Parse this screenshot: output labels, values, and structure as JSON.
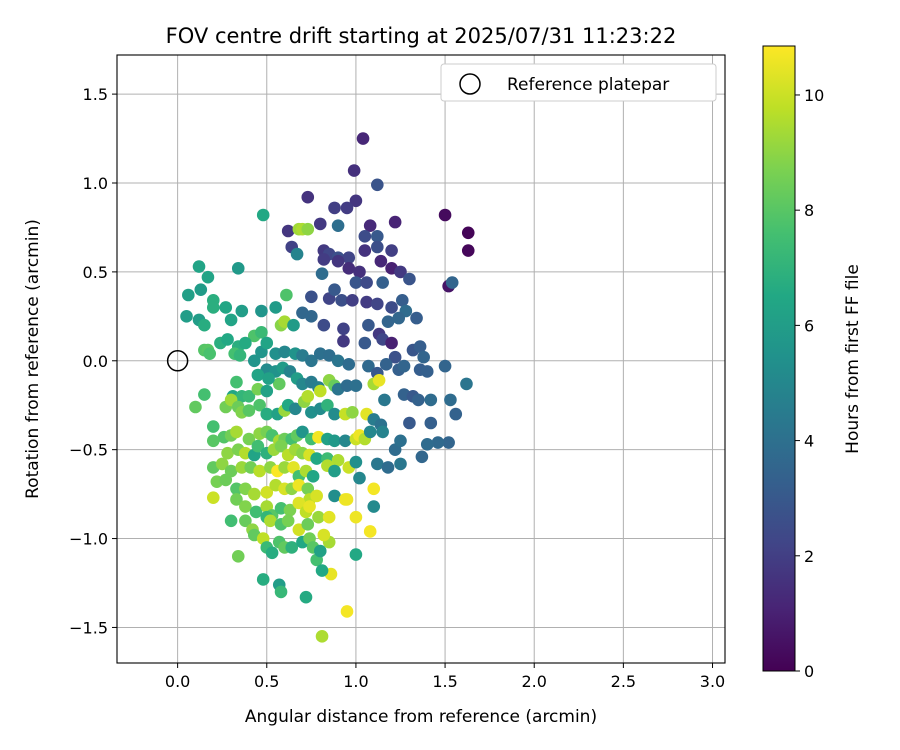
{
  "chart_data": {
    "type": "scatter",
    "title": "FOV centre drift starting at 2025/07/31 11:23:22",
    "xlabel": "Angular distance from reference (arcmin)",
    "ylabel": "Rotation from reference (arcmin)",
    "xlim": [
      -0.34,
      3.07
    ],
    "ylim": [
      -1.7,
      1.72
    ],
    "xticks": [
      0.0,
      0.5,
      1.0,
      1.5,
      2.0,
      2.5,
      3.0
    ],
    "xtick_labels": [
      "0.0",
      "0.5",
      "1.0",
      "1.5",
      "2.0",
      "2.5",
      "3.0"
    ],
    "yticks": [
      -1.5,
      -1.0,
      -0.5,
      0.0,
      0.5,
      1.0,
      1.5
    ],
    "ytick_labels": [
      "−1.5",
      "−1.0",
      "−0.5",
      "0.0",
      "0.5",
      "1.0",
      "1.5"
    ],
    "grid": true,
    "legend": {
      "placement": "top-right",
      "entries": [
        "Reference platepar"
      ]
    },
    "reference_point": {
      "x": 0.0,
      "y": 0.0
    },
    "colorbar": {
      "label": "Hours from first FF file",
      "range": [
        0,
        10.85
      ],
      "ticks": [
        0,
        2,
        4,
        6,
        8,
        10
      ],
      "tick_labels": [
        "0",
        "2",
        "4",
        "6",
        "8",
        "10"
      ],
      "colormap": "viridis"
    },
    "points": [
      [
        1.04,
        1.25,
        1.2
      ],
      [
        0.99,
        1.07,
        1.5
      ],
      [
        1.5,
        0.82,
        0.3
      ],
      [
        1.63,
        0.72,
        0.1
      ],
      [
        1.63,
        0.62,
        0.2
      ],
      [
        1.52,
        0.42,
        0.6
      ],
      [
        1.54,
        0.44,
        3.5
      ],
      [
        1.12,
        0.99,
        2.8
      ],
      [
        1.0,
        0.9,
        1.7
      ],
      [
        0.95,
        0.86,
        1.9
      ],
      [
        0.88,
        0.86,
        2.0
      ],
      [
        0.73,
        0.92,
        1.6
      ],
      [
        1.22,
        0.78,
        1.1
      ],
      [
        0.8,
        0.77,
        1.8
      ],
      [
        0.62,
        0.73,
        1.7
      ],
      [
        0.68,
        0.74,
        9.3
      ],
      [
        0.7,
        0.74,
        9.5
      ],
      [
        0.73,
        0.74,
        9.0
      ],
      [
        0.9,
        0.76,
        3.9
      ],
      [
        1.08,
        0.76,
        1.3
      ],
      [
        1.05,
        0.7,
        2.5
      ],
      [
        1.12,
        0.7,
        3.0
      ],
      [
        0.48,
        0.82,
        6.5
      ],
      [
        0.64,
        0.64,
        2.1
      ],
      [
        0.67,
        0.6,
        4.8
      ],
      [
        0.82,
        0.62,
        1.8
      ],
      [
        0.85,
        0.6,
        2.3
      ],
      [
        0.9,
        0.58,
        2.7
      ],
      [
        0.96,
        0.58,
        2.2
      ],
      [
        1.05,
        0.62,
        1.6
      ],
      [
        1.12,
        0.64,
        2.6
      ],
      [
        1.2,
        0.62,
        2.0
      ],
      [
        0.82,
        0.57,
        1.9
      ],
      [
        0.9,
        0.56,
        1.7
      ],
      [
        0.96,
        0.52,
        1.4
      ],
      [
        1.02,
        0.5,
        1.5
      ],
      [
        1.14,
        0.56,
        1.2
      ],
      [
        1.2,
        0.52,
        1.0
      ],
      [
        1.25,
        0.5,
        1.8
      ],
      [
        0.81,
        0.49,
        3.8
      ],
      [
        1.0,
        0.44,
        2.9
      ],
      [
        1.06,
        0.44,
        2.4
      ],
      [
        1.15,
        0.44,
        3.3
      ],
      [
        1.3,
        0.46,
        2.8
      ],
      [
        0.34,
        0.52,
        5.8
      ],
      [
        0.12,
        0.53,
        6.3
      ],
      [
        0.75,
        0.36,
        2.7
      ],
      [
        0.85,
        0.35,
        2.2
      ],
      [
        0.92,
        0.34,
        2.6
      ],
      [
        0.98,
        0.34,
        2.0
      ],
      [
        1.06,
        0.33,
        1.9
      ],
      [
        1.12,
        0.32,
        2.2
      ],
      [
        1.2,
        0.3,
        2.5
      ],
      [
        1.26,
        0.34,
        3.2
      ],
      [
        1.28,
        0.28,
        3.8
      ],
      [
        0.88,
        0.4,
        3.0
      ],
      [
        0.61,
        0.37,
        7.8
      ],
      [
        0.55,
        0.3,
        5.9
      ],
      [
        0.47,
        0.28,
        5.6
      ],
      [
        0.3,
        0.23,
        6.3
      ],
      [
        0.2,
        0.34,
        6.8
      ],
      [
        0.2,
        0.3,
        6.8
      ],
      [
        0.27,
        0.3,
        6.4
      ],
      [
        0.13,
        0.4,
        5.9
      ],
      [
        0.06,
        0.37,
        6.1
      ],
      [
        0.17,
        0.47,
        6.3
      ],
      [
        0.05,
        0.25,
        6.0
      ],
      [
        0.12,
        0.23,
        6.0
      ],
      [
        0.15,
        0.2,
        6.7
      ],
      [
        0.36,
        0.28,
        6.0
      ],
      [
        0.43,
        0.14,
        7.8
      ],
      [
        0.47,
        0.16,
        7.3
      ],
      [
        0.58,
        0.2,
        8.9
      ],
      [
        0.6,
        0.22,
        9.4
      ],
      [
        0.65,
        0.2,
        5.9
      ],
      [
        0.7,
        0.27,
        3.6
      ],
      [
        0.75,
        0.25,
        3.6
      ],
      [
        0.82,
        0.2,
        2.5
      ],
      [
        0.93,
        0.18,
        2.1
      ],
      [
        1.07,
        0.2,
        3.0
      ],
      [
        1.18,
        0.22,
        3.5
      ],
      [
        1.24,
        0.24,
        3.6
      ],
      [
        1.34,
        0.24,
        3.2
      ],
      [
        0.93,
        0.11,
        1.8
      ],
      [
        1.05,
        0.1,
        3.0
      ],
      [
        1.13,
        0.15,
        1.8
      ],
      [
        1.15,
        0.12,
        2.3
      ],
      [
        1.2,
        0.1,
        1.0
      ],
      [
        1.22,
        0.02,
        2.7
      ],
      [
        1.32,
        0.06,
        2.9
      ],
      [
        1.36,
        0.08,
        3.2
      ],
      [
        1.38,
        0.02,
        3.5
      ],
      [
        1.5,
        -0.03,
        3.5
      ],
      [
        1.62,
        -0.13,
        4.2
      ],
      [
        0.15,
        0.06,
        7.9
      ],
      [
        0.17,
        0.06,
        8.0
      ],
      [
        0.18,
        0.04,
        7.7
      ],
      [
        0.24,
        0.1,
        6.8
      ],
      [
        0.28,
        0.12,
        6.5
      ],
      [
        0.34,
        0.08,
        6.8
      ],
      [
        0.38,
        0.1,
        6.6
      ],
      [
        0.32,
        0.04,
        7.6
      ],
      [
        0.35,
        0.03,
        7.1
      ],
      [
        0.43,
        0.0,
        5.6
      ],
      [
        0.47,
        0.05,
        5.6
      ],
      [
        0.5,
        0.1,
        6.3
      ],
      [
        0.55,
        0.04,
        5.4
      ],
      [
        0.6,
        0.05,
        5.0
      ],
      [
        0.66,
        0.04,
        5.5
      ],
      [
        0.7,
        0.03,
        4.5
      ],
      [
        0.75,
        0.0,
        4.2
      ],
      [
        0.8,
        0.04,
        4.0
      ],
      [
        0.85,
        0.03,
        3.9
      ],
      [
        0.9,
        0.0,
        4.2
      ],
      [
        0.96,
        -0.02,
        3.8
      ],
      [
        1.07,
        -0.03,
        3.7
      ],
      [
        1.12,
        -0.07,
        3.0
      ],
      [
        1.17,
        -0.02,
        3.4
      ],
      [
        1.24,
        -0.05,
        3.3
      ],
      [
        1.27,
        -0.03,
        3.5
      ],
      [
        1.36,
        -0.05,
        3.2
      ],
      [
        1.4,
        -0.06,
        3.3
      ],
      [
        0.5,
        -0.05,
        5.1
      ],
      [
        0.55,
        -0.06,
        5.5
      ],
      [
        0.59,
        -0.04,
        5.9
      ],
      [
        0.63,
        -0.06,
        4.8
      ],
      [
        0.57,
        -0.13,
        8.2
      ],
      [
        0.45,
        -0.08,
        6.3
      ],
      [
        0.51,
        -0.1,
        6.2
      ],
      [
        0.33,
        -0.12,
        7.6
      ],
      [
        0.31,
        -0.2,
        6.4
      ],
      [
        0.36,
        -0.2,
        7.1
      ],
      [
        0.4,
        -0.2,
        7.3
      ],
      [
        0.45,
        -0.16,
        8.6
      ],
      [
        0.5,
        -0.17,
        6.2
      ],
      [
        0.67,
        -0.1,
        6.0
      ],
      [
        0.7,
        -0.13,
        5.0
      ],
      [
        0.75,
        -0.12,
        4.5
      ],
      [
        0.79,
        -0.15,
        4.6
      ],
      [
        0.8,
        -0.17,
        9.8
      ],
      [
        0.85,
        -0.11,
        9.0
      ],
      [
        0.88,
        -0.14,
        8.3
      ],
      [
        0.9,
        -0.16,
        4.2
      ],
      [
        0.95,
        -0.14,
        3.8
      ],
      [
        1.0,
        -0.14,
        4.0
      ],
      [
        1.1,
        -0.13,
        9.4
      ],
      [
        1.13,
        -0.11,
        10.5
      ],
      [
        1.16,
        -0.22,
        4.3
      ],
      [
        1.27,
        -0.19,
        3.4
      ],
      [
        1.32,
        -0.2,
        3.0
      ],
      [
        1.35,
        -0.22,
        3.4
      ],
      [
        1.42,
        -0.22,
        3.8
      ],
      [
        1.53,
        -0.22,
        3.8
      ],
      [
        1.56,
        -0.3,
        3.4
      ],
      [
        0.27,
        -0.26,
        8.5
      ],
      [
        0.3,
        -0.22,
        9.3
      ],
      [
        0.34,
        -0.26,
        8.4
      ],
      [
        0.36,
        -0.29,
        8.8
      ],
      [
        0.4,
        -0.28,
        8.0
      ],
      [
        0.46,
        -0.25,
        7.8
      ],
      [
        0.5,
        -0.3,
        6.7
      ],
      [
        0.56,
        -0.3,
        6.2
      ],
      [
        0.6,
        -0.28,
        9.2
      ],
      [
        0.62,
        -0.25,
        6.5
      ],
      [
        0.66,
        -0.27,
        5.0
      ],
      [
        0.71,
        -0.23,
        9.0
      ],
      [
        0.73,
        -0.2,
        9.6
      ],
      [
        0.75,
        -0.29,
        5.4
      ],
      [
        0.8,
        -0.27,
        5.2
      ],
      [
        0.84,
        -0.25,
        7.0
      ],
      [
        0.88,
        -0.3,
        5.2
      ],
      [
        0.94,
        -0.3,
        9.9
      ],
      [
        0.98,
        -0.29,
        9.0
      ],
      [
        1.06,
        -0.3,
        10.4
      ],
      [
        1.1,
        -0.33,
        4.5
      ],
      [
        1.14,
        -0.36,
        4.1
      ],
      [
        1.3,
        -0.35,
        3.0
      ],
      [
        1.42,
        -0.35,
        3.3
      ],
      [
        1.52,
        -0.46,
        3.5
      ],
      [
        1.46,
        -0.46,
        3.7
      ],
      [
        1.4,
        -0.47,
        3.8
      ],
      [
        1.37,
        -0.54,
        3.6
      ],
      [
        1.22,
        -0.5,
        3.8
      ],
      [
        0.2,
        -0.37,
        7.6
      ],
      [
        0.26,
        -0.43,
        7.9
      ],
      [
        0.3,
        -0.42,
        8.5
      ],
      [
        0.33,
        -0.4,
        9.4
      ],
      [
        0.4,
        -0.44,
        8.6
      ],
      [
        0.46,
        -0.41,
        9.0
      ],
      [
        0.5,
        -0.4,
        8.6
      ],
      [
        0.53,
        -0.42,
        7.7
      ],
      [
        0.57,
        -0.45,
        9.4
      ],
      [
        0.6,
        -0.44,
        8.4
      ],
      [
        0.64,
        -0.44,
        7.6
      ],
      [
        0.67,
        -0.42,
        8.2
      ],
      [
        0.7,
        -0.4,
        5.6
      ],
      [
        0.75,
        -0.44,
        7.5
      ],
      [
        0.79,
        -0.43,
        10.7
      ],
      [
        0.84,
        -0.44,
        6.2
      ],
      [
        0.88,
        -0.45,
        5.8
      ],
      [
        0.94,
        -0.45,
        5.0
      ],
      [
        1.0,
        -0.44,
        10.0
      ],
      [
        1.02,
        -0.42,
        10.6
      ],
      [
        1.05,
        -0.44,
        9.6
      ],
      [
        1.08,
        -0.4,
        5.0
      ],
      [
        1.15,
        -0.4,
        4.8
      ],
      [
        1.25,
        -0.45,
        4.0
      ],
      [
        0.2,
        -0.45,
        8.0
      ],
      [
        0.28,
        -0.52,
        9.0
      ],
      [
        0.34,
        -0.5,
        8.7
      ],
      [
        0.38,
        -0.52,
        9.6
      ],
      [
        0.43,
        -0.53,
        6.3
      ],
      [
        0.45,
        -0.48,
        7.5
      ],
      [
        0.5,
        -0.52,
        6.9
      ],
      [
        0.54,
        -0.5,
        9.2
      ],
      [
        0.58,
        -0.48,
        8.7
      ],
      [
        0.62,
        -0.53,
        9.7
      ],
      [
        0.66,
        -0.5,
        9.3
      ],
      [
        0.7,
        -0.52,
        8.9
      ],
      [
        0.74,
        -0.53,
        10.2
      ],
      [
        0.78,
        -0.55,
        6.5
      ],
      [
        0.84,
        -0.55,
        7.4
      ],
      [
        0.9,
        -0.56,
        9.5
      ],
      [
        0.96,
        -0.6,
        10.0
      ],
      [
        1.0,
        -0.57,
        5.4
      ],
      [
        1.02,
        -0.66,
        5.0
      ],
      [
        1.12,
        -0.58,
        4.3
      ],
      [
        1.18,
        -0.6,
        3.8
      ],
      [
        1.25,
        -0.58,
        4.3
      ],
      [
        0.2,
        -0.6,
        8.2
      ],
      [
        0.25,
        -0.58,
        9.0
      ],
      [
        0.3,
        -0.62,
        8.4
      ],
      [
        0.36,
        -0.6,
        9.2
      ],
      [
        0.41,
        -0.6,
        8.5
      ],
      [
        0.46,
        -0.62,
        9.7
      ],
      [
        0.52,
        -0.6,
        9.0
      ],
      [
        0.56,
        -0.62,
        10.8
      ],
      [
        0.6,
        -0.6,
        9.2
      ],
      [
        0.65,
        -0.6,
        10.4
      ],
      [
        0.68,
        -0.65,
        7.6
      ],
      [
        0.72,
        -0.62,
        9.5
      ],
      [
        0.76,
        -0.65,
        6.4
      ],
      [
        0.84,
        -0.59,
        9.6
      ],
      [
        0.88,
        -0.62,
        6.0
      ],
      [
        0.22,
        -0.68,
        8.6
      ],
      [
        0.27,
        -0.67,
        8.4
      ],
      [
        0.33,
        -0.72,
        7.9
      ],
      [
        0.38,
        -0.72,
        8.8
      ],
      [
        0.43,
        -0.75,
        9.4
      ],
      [
        0.5,
        -0.74,
        10.1
      ],
      [
        0.55,
        -0.7,
        9.6
      ],
      [
        0.6,
        -0.72,
        10.2
      ],
      [
        0.64,
        -0.72,
        9.0
      ],
      [
        0.68,
        -0.7,
        10.6
      ],
      [
        0.73,
        -0.72,
        8.6
      ],
      [
        0.74,
        -0.78,
        9.7
      ],
      [
        0.78,
        -0.76,
        10.2
      ],
      [
        0.88,
        -0.76,
        5.3
      ],
      [
        0.95,
        -0.78,
        10.6
      ],
      [
        1.1,
        -0.72,
        10.7
      ],
      [
        1.1,
        -0.82,
        5.1
      ],
      [
        0.2,
        -0.77,
        10.0
      ],
      [
        0.33,
        -0.78,
        8.5
      ],
      [
        0.38,
        -0.82,
        8.8
      ],
      [
        0.44,
        -0.85,
        7.5
      ],
      [
        0.5,
        -0.82,
        9.4
      ],
      [
        0.53,
        -0.87,
        8.0
      ],
      [
        0.58,
        -0.83,
        7.6
      ],
      [
        0.63,
        -0.84,
        8.7
      ],
      [
        0.68,
        -0.8,
        10.3
      ],
      [
        0.72,
        -0.85,
        9.8
      ],
      [
        0.74,
        -0.82,
        10.5
      ],
      [
        0.3,
        -0.9,
        7.5
      ],
      [
        0.38,
        -0.9,
        8.3
      ],
      [
        0.42,
        -0.95,
        9.0
      ],
      [
        0.5,
        -0.88,
        7.1
      ],
      [
        0.52,
        -0.9,
        9.5
      ],
      [
        0.58,
        -0.92,
        7.8
      ],
      [
        0.62,
        -0.9,
        8.6
      ],
      [
        0.68,
        -0.95,
        10.1
      ],
      [
        0.73,
        -0.92,
        8.4
      ],
      [
        0.79,
        -0.88,
        9.2
      ],
      [
        0.85,
        -0.88,
        10.4
      ],
      [
        0.94,
        -0.78,
        10.6
      ],
      [
        1.0,
        -0.88,
        10.6
      ],
      [
        1.08,
        -0.96,
        10.7
      ],
      [
        0.34,
        -1.1,
        8.5
      ],
      [
        0.43,
        -0.98,
        8.2
      ],
      [
        0.48,
        -1.0,
        9.8
      ],
      [
        0.5,
        -1.05,
        7.3
      ],
      [
        0.53,
        -1.08,
        6.7
      ],
      [
        0.57,
        -1.02,
        7.8
      ],
      [
        0.6,
        -1.05,
        8.2
      ],
      [
        0.64,
        -1.05,
        6.9
      ],
      [
        0.7,
        -1.02,
        6.5
      ],
      [
        0.74,
        -1.0,
        8.5
      ],
      [
        0.76,
        -1.05,
        8.0
      ],
      [
        0.78,
        -1.12,
        7.6
      ],
      [
        0.8,
        -1.07,
        6.2
      ],
      [
        0.85,
        -1.02,
        9.4
      ],
      [
        0.82,
        -0.98,
        10.2
      ],
      [
        1.0,
        -1.09,
        6.5
      ],
      [
        0.48,
        -1.23,
        6.7
      ],
      [
        0.57,
        -1.26,
        6.0
      ],
      [
        0.58,
        -1.3,
        7.2
      ],
      [
        0.72,
        -1.33,
        6.6
      ],
      [
        0.86,
        -1.2,
        10.5
      ],
      [
        0.81,
        -1.18,
        6.5
      ],
      [
        0.95,
        -1.41,
        10.7
      ],
      [
        0.81,
        -1.55,
        9.5
      ],
      [
        0.1,
        -0.26,
        8.2
      ],
      [
        0.15,
        -0.19,
        7.6
      ]
    ]
  }
}
